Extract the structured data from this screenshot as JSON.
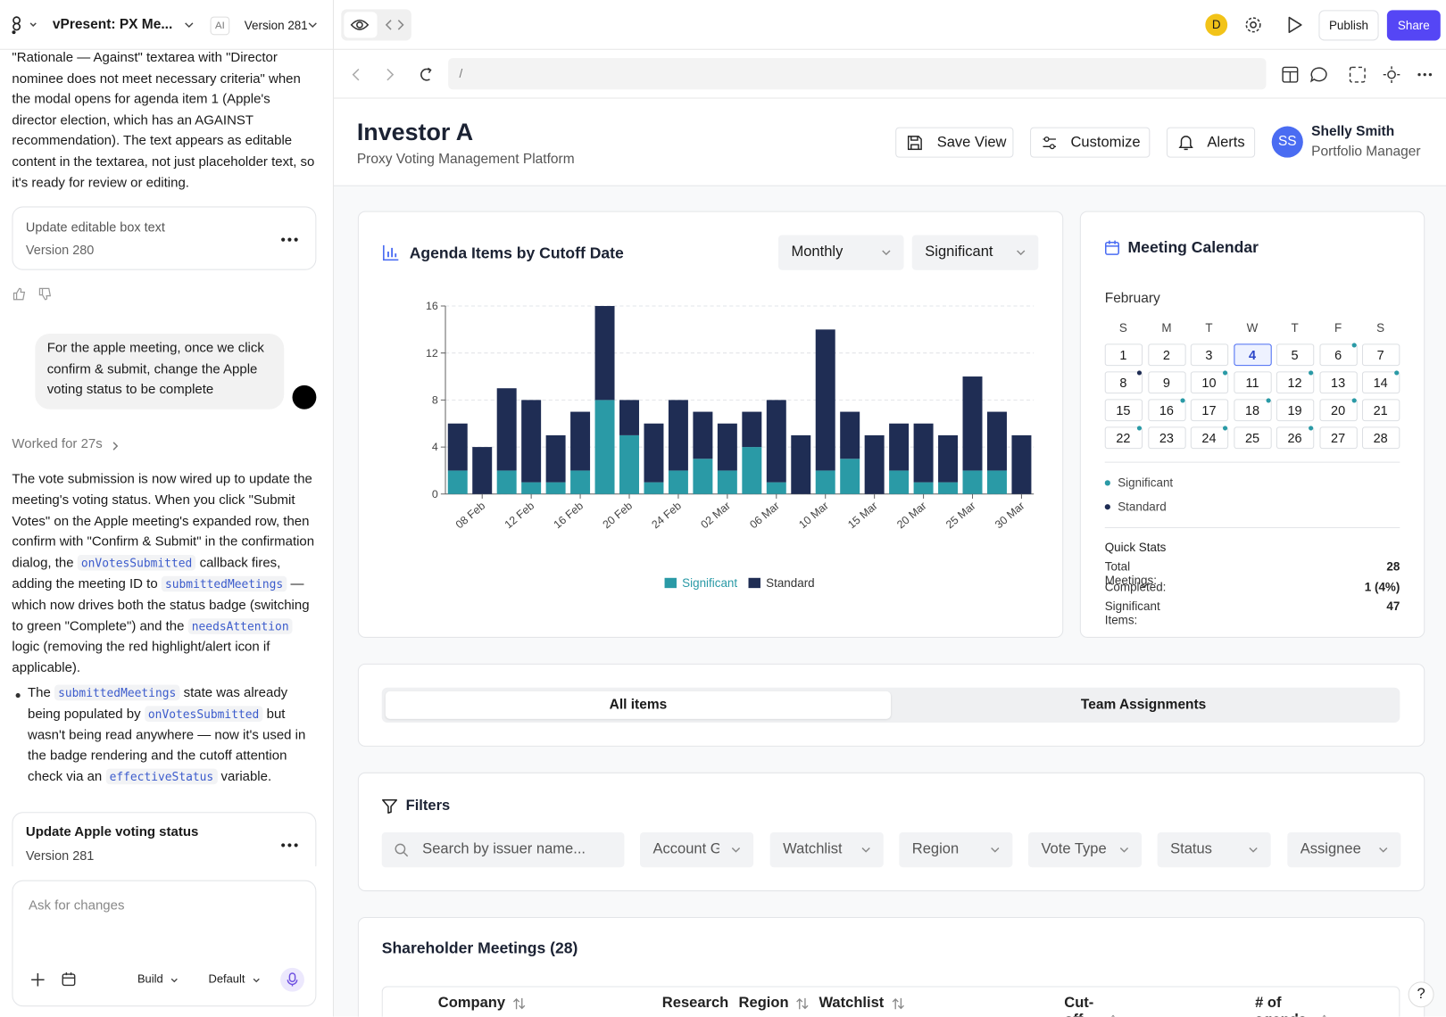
{
  "topbar": {
    "project": "vPresent: PX Me...",
    "ai_badge": "AI",
    "version": "Version 281",
    "avatar": "D",
    "publish": "Publish",
    "share": "Share",
    "url": "/"
  },
  "chat": {
    "intro": "\"Rationale — Against\" textarea with \"Director nominee does not meet necessary criteria\" when the modal opens for agenda item 1 (Apple's director election, which has an AGAINST recommendation). The text appears as editable content in the textarea, not just placeholder text, so it's ready for review or editing.",
    "version_card_1": {
      "title": "Update editable box text",
      "version": "Version 280"
    },
    "user_message": "For the apple meeting, once we click confirm & submit, change the Apple voting status to be complete",
    "worked": "Worked for 27s",
    "reply": [
      "The vote submission is now wired up to update the meeting's voting status. When you click \"Submit Votes\" on the Apple meeting's expanded row, then confirm with \"Confirm & Submit\" in the confirmation dialog, the ",
      "onVotesSubmitted",
      " callback fires, adding the meeting ID to ",
      "submittedMeetings",
      " — which now drives both the status badge (switching to green \"Complete\") and the ",
      "needsAttention",
      " logic (removing the red highlight/alert icon if applicable)."
    ],
    "bullet": [
      "The ",
      "submittedMeetings",
      " state was already being populated by ",
      "onVotesSubmitted",
      " but wasn't being read anywhere — now it's used in the badge rendering and the cutoff attention check via an ",
      "effectiveStatus",
      " variable."
    ],
    "version_card_2": {
      "title": "Update Apple voting status",
      "version": "Version 281"
    },
    "input_placeholder": "Ask for changes",
    "build": "Build",
    "default": "Default"
  },
  "header": {
    "title": "Investor A",
    "subtitle": "Proxy Voting Management Platform",
    "save_view": "Save View",
    "customize": "Customize",
    "alerts": "Alerts",
    "user_initials": "SS",
    "user_name": "Shelly Smith",
    "user_role": "Portfolio Manager"
  },
  "chart_data": {
    "type": "bar",
    "title": "Agenda Items by Cutoff Date",
    "period": "Monthly",
    "filter": "Significant",
    "stacked": true,
    "categories": [
      null,
      "08 Feb",
      null,
      "12 Feb",
      null,
      "16 Feb",
      null,
      "20 Feb",
      null,
      "24 Feb",
      null,
      "02 Mar",
      null,
      "06 Mar",
      null,
      "10 Mar",
      null,
      "15 Mar",
      null,
      "20 Mar",
      null,
      "25 Mar",
      null,
      "30 Mar"
    ],
    "series": [
      {
        "name": "Significant",
        "color": "#2a9aa6",
        "values": [
          2,
          0,
          2,
          1,
          1,
          2,
          8,
          5,
          1,
          2,
          3,
          2,
          4,
          1,
          0,
          2,
          3,
          0,
          2,
          1,
          1,
          2,
          2,
          0
        ]
      },
      {
        "name": "Standard",
        "color": "#1f2d54",
        "values": [
          4,
          4,
          7,
          7,
          4,
          5,
          8,
          3,
          5,
          6,
          4,
          4,
          3,
          7,
          5,
          12,
          4,
          5,
          4,
          5,
          4,
          8,
          5,
          5
        ]
      }
    ],
    "ylim": [
      0,
      16
    ],
    "yticks": [
      0,
      4,
      8,
      12,
      16
    ],
    "grid": true
  },
  "calendar": {
    "title": "Meeting Calendar",
    "month": "February",
    "weekdays": [
      "S",
      "M",
      "T",
      "W",
      "T",
      "F",
      "S"
    ],
    "days": [
      1,
      2,
      3,
      4,
      5,
      6,
      7,
      8,
      9,
      10,
      11,
      12,
      13,
      14,
      15,
      16,
      17,
      18,
      19,
      20,
      21,
      22,
      23,
      24,
      25,
      26,
      27,
      28
    ],
    "selected_day": 4,
    "significant_days": [
      6,
      10,
      12,
      14,
      16,
      18,
      20,
      22,
      24,
      26
    ],
    "standard_days": [
      8
    ],
    "legend": [
      "Significant",
      "Standard"
    ]
  },
  "quick_stats": {
    "title": "Quick Stats",
    "rows": [
      [
        "Total Meetings:",
        "28"
      ],
      [
        "Completed:",
        "1 (4%)"
      ],
      [
        "Significant Items:",
        "47"
      ]
    ]
  },
  "tabs": [
    "All items",
    "Team Assignments"
  ],
  "filters": {
    "title": "Filters",
    "search_placeholder": "Search by issuer name...",
    "dropdowns": [
      "Account G",
      "Watchlist",
      "Region",
      "Vote Type",
      "Status",
      "Assignee"
    ]
  },
  "table": {
    "title": "Shareholder Meetings (28)",
    "columns": [
      "Company",
      "Research",
      "Region",
      "Watchlist",
      "Cut-off date",
      "# of agenda items"
    ]
  },
  "help": "?"
}
